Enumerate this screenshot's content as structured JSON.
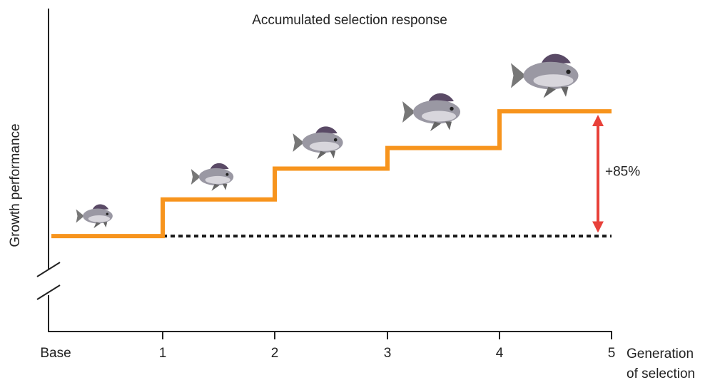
{
  "chart_data": {
    "type": "step",
    "title": "Accumulated selection response",
    "ylabel": "Growth performance",
    "xlabel": [
      "Generation",
      "of selection"
    ],
    "categories": [
      "Base",
      "1",
      "2",
      "3",
      "4",
      "5"
    ],
    "values": [
      100,
      125,
      146,
      160,
      185,
      185
    ],
    "color": "#f7941d",
    "baseline_color": "#1a1a1a",
    "annotation": {
      "text": "+85%",
      "color": "#e8413a"
    },
    "ylim": [
      35,
      256
    ]
  }
}
